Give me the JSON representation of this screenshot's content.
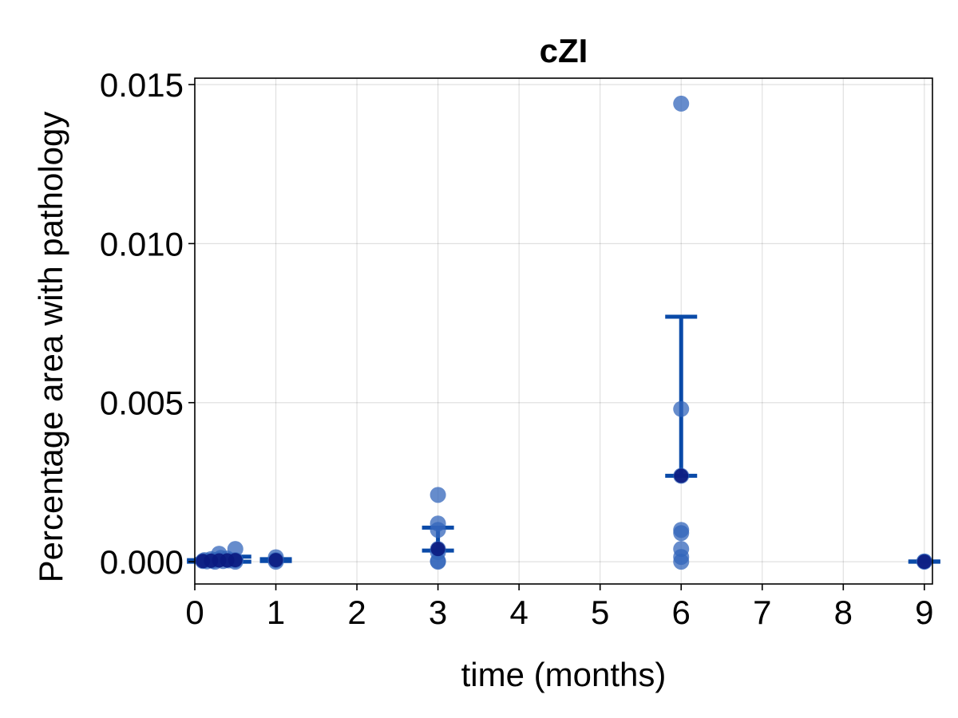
{
  "chart_data": {
    "type": "scatter",
    "title": "cZI",
    "xlabel": "time (months)",
    "ylabel": "Percentage area with pathology",
    "xlim": [
      0,
      9.1
    ],
    "ylim": [
      -0.0007,
      0.0152
    ],
    "x_ticks": [
      0,
      1,
      2,
      3,
      4,
      5,
      6,
      7,
      8,
      9
    ],
    "x_tick_labels": [
      "0",
      "1",
      "2",
      "3",
      "4",
      "5",
      "6",
      "7",
      "8",
      "9"
    ],
    "y_ticks": [
      0.0,
      0.005,
      0.01,
      0.015
    ],
    "y_tick_labels": [
      "0.000",
      "0.005",
      "0.010",
      "0.015"
    ],
    "grid": true,
    "colors": {
      "points": "#3366bb",
      "median": "#0a1a80",
      "errorbar": "#0a4aa8"
    },
    "series": [
      {
        "name": "individual samples",
        "points": [
          {
            "x": 0.1,
            "y": 2e-05
          },
          {
            "x": 0.12,
            "y": 5e-05
          },
          {
            "x": 0.15,
            "y": 1e-05
          },
          {
            "x": 0.2,
            "y": 8e-05
          },
          {
            "x": 0.22,
            "y": 3e-05
          },
          {
            "x": 0.25,
            "y": 0.0
          },
          {
            "x": 0.28,
            "y": 6e-05
          },
          {
            "x": 0.3,
            "y": 0.00025
          },
          {
            "x": 0.32,
            "y": 0.00012
          },
          {
            "x": 0.35,
            "y": 2e-05
          },
          {
            "x": 0.4,
            "y": 0.0001
          },
          {
            "x": 0.42,
            "y": 4e-05
          },
          {
            "x": 0.5,
            "y": 0.0004
          },
          {
            "x": 0.5,
            "y": 5e-05
          },
          {
            "x": 0.5,
            "y": 0.0
          },
          {
            "x": 1,
            "y": 0.00014
          },
          {
            "x": 1,
            "y": 5e-05
          },
          {
            "x": 1,
            "y": 0.0
          },
          {
            "x": 3,
            "y": 0.0021
          },
          {
            "x": 3,
            "y": 0.0012
          },
          {
            "x": 3,
            "y": 0.001
          },
          {
            "x": 3,
            "y": 0.0004
          },
          {
            "x": 3,
            "y": 0.0003
          },
          {
            "x": 3,
            "y": 2e-05
          },
          {
            "x": 3,
            "y": 0.0
          },
          {
            "x": 6,
            "y": 0.0144
          },
          {
            "x": 6,
            "y": 0.0048
          },
          {
            "x": 6,
            "y": 0.0027
          },
          {
            "x": 6,
            "y": 0.001
          },
          {
            "x": 6,
            "y": 0.0009
          },
          {
            "x": 6,
            "y": 0.0004
          },
          {
            "x": 6,
            "y": 0.00015
          },
          {
            "x": 6,
            "y": 0.0
          },
          {
            "x": 9,
            "y": 0.0
          },
          {
            "x": 9,
            "y": 1e-05
          }
        ]
      },
      {
        "name": "median",
        "points": [
          {
            "x": 0.1,
            "y": 2e-05
          },
          {
            "x": 0.2,
            "y": 3e-05
          },
          {
            "x": 0.3,
            "y": 4e-05
          },
          {
            "x": 0.4,
            "y": 4e-05
          },
          {
            "x": 0.5,
            "y": 5e-05
          },
          {
            "x": 1,
            "y": 5e-05
          },
          {
            "x": 3,
            "y": 0.0004
          },
          {
            "x": 6,
            "y": 0.0027
          },
          {
            "x": 9,
            "y": 0.0
          }
        ]
      }
    ],
    "error_bars": [
      {
        "x": 0.1,
        "low": 0.0,
        "high": 5e-05
      },
      {
        "x": 0.2,
        "low": 0.0,
        "high": 8e-05
      },
      {
        "x": 0.3,
        "low": 2e-05,
        "high": 0.00014
      },
      {
        "x": 0.4,
        "low": 2e-05,
        "high": 0.00012
      },
      {
        "x": 0.5,
        "low": 0.0,
        "high": 0.00016
      },
      {
        "x": 1,
        "low": 2e-05,
        "high": 8e-05
      },
      {
        "x": 3,
        "low": 0.00035,
        "high": 0.00107
      },
      {
        "x": 6,
        "low": 0.0027,
        "high": 0.0077
      },
      {
        "x": 9,
        "low": 0.0,
        "high": 1e-05
      }
    ]
  }
}
